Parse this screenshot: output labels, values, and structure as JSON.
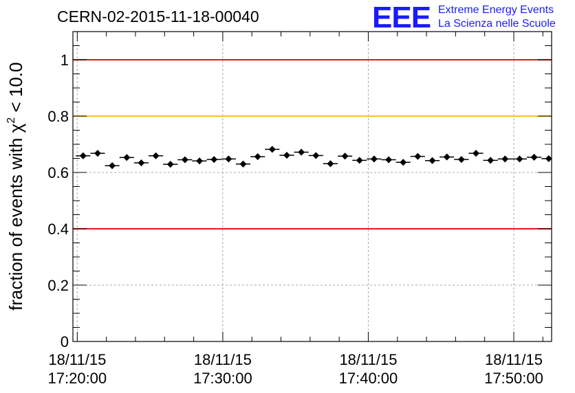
{
  "header": {
    "run_title": "CERN-02-2015-11-18-00040",
    "logo_letters": "EEE",
    "logo_line1": "Extreme Energy Events",
    "logo_line2": "La Scienza nelle Scuole"
  },
  "chart_data": {
    "type": "scatter",
    "title": "CERN-02-2015-11-18-00040",
    "ylabel": "fraction of events with χ² < 10.0",
    "ylabel_parts": {
      "before": "fraction of events with ",
      "symbol": "χ",
      "sup": "2",
      "after": " < 10.0"
    },
    "xlabel": "",
    "x_unit": "minutes after 18/11/15 17:20:00",
    "xlim": [
      -0.3,
      32.6
    ],
    "ylim": [
      0,
      1.1
    ],
    "grid": true,
    "y_ticks": [
      {
        "value": 0,
        "label": "0"
      },
      {
        "value": 0.2,
        "label": "0.2"
      },
      {
        "value": 0.4,
        "label": "0.4"
      },
      {
        "value": 0.6,
        "label": "0.6"
      },
      {
        "value": 0.8,
        "label": "0.8"
      },
      {
        "value": 1,
        "label": "1"
      }
    ],
    "x_ticks": [
      {
        "value": 0,
        "date": "18/11/15",
        "time": "17:20:00"
      },
      {
        "value": 10,
        "date": "18/11/15",
        "time": "17:30:00"
      },
      {
        "value": 20,
        "date": "18/11/15",
        "time": "17:40:00"
      },
      {
        "value": 30,
        "date": "18/11/15",
        "time": "17:50:00"
      }
    ],
    "reference_lines": [
      {
        "y": 1.0,
        "color": "#e8141c"
      },
      {
        "y": 0.8,
        "color": "#ffc20e"
      },
      {
        "y": 0.4,
        "color": "#e8141c"
      }
    ],
    "series": [
      {
        "color": "#000000",
        "x_halfwidth": 0.5,
        "y_error": 0.011,
        "points": [
          [
            0.4,
            0.659
          ],
          [
            1.4,
            0.668
          ],
          [
            2.4,
            0.624
          ],
          [
            3.4,
            0.653
          ],
          [
            4.4,
            0.634
          ],
          [
            5.4,
            0.659
          ],
          [
            6.4,
            0.629
          ],
          [
            7.4,
            0.645
          ],
          [
            8.4,
            0.641
          ],
          [
            9.4,
            0.646
          ],
          [
            10.4,
            0.648
          ],
          [
            11.4,
            0.63
          ],
          [
            12.4,
            0.656
          ],
          [
            13.4,
            0.682
          ],
          [
            14.4,
            0.661
          ],
          [
            15.4,
            0.672
          ],
          [
            16.4,
            0.66
          ],
          [
            17.4,
            0.631
          ],
          [
            18.4,
            0.658
          ],
          [
            19.4,
            0.643
          ],
          [
            20.4,
            0.648
          ],
          [
            21.4,
            0.645
          ],
          [
            22.4,
            0.636
          ],
          [
            23.4,
            0.657
          ],
          [
            24.4,
            0.642
          ],
          [
            25.4,
            0.655
          ],
          [
            26.4,
            0.646
          ],
          [
            27.4,
            0.668
          ],
          [
            28.4,
            0.643
          ],
          [
            29.4,
            0.648
          ],
          [
            30.4,
            0.648
          ],
          [
            31.4,
            0.654
          ],
          [
            32.4,
            0.649
          ]
        ]
      }
    ]
  }
}
